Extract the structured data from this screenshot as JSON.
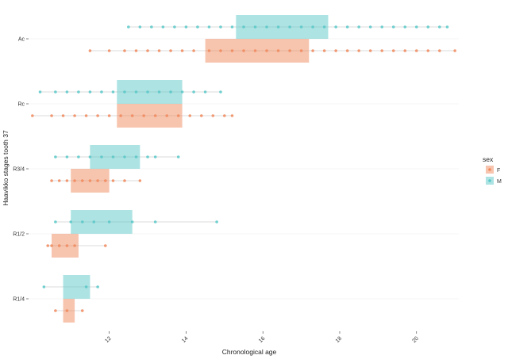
{
  "chart_data": {
    "type": "scatter",
    "title": "",
    "xlabel": "Chronological age",
    "ylabel": "Haavikko stages tooth 37",
    "xlim": [
      9.9,
      21.1
    ],
    "x_ticks": [
      12,
      14,
      16,
      18,
      20
    ],
    "categories": [
      "Ac",
      "Rc",
      "R3/4",
      "R1/2",
      "R1/4"
    ],
    "colors": {
      "F": "#F08A5D",
      "M": "#5BC8C8"
    },
    "legend": {
      "title": "sex",
      "entries": [
        "F",
        "M"
      ],
      "position": "right"
    },
    "series": [
      {
        "name": "F",
        "boxes": [
          {
            "stage": "Ac",
            "q1": 14.5,
            "q3": 17.2,
            "min": 11.5,
            "max": 21.0
          },
          {
            "stage": "Rc",
            "q1": 12.2,
            "q3": 13.9,
            "min": 10.0,
            "max": 15.2
          },
          {
            "stage": "R3/4",
            "q1": 11.0,
            "q3": 12.0,
            "min": 10.5,
            "max": 12.8
          },
          {
            "stage": "R1/2",
            "q1": 10.5,
            "q3": 11.2,
            "min": 10.4,
            "max": 11.9
          },
          {
            "stage": "R1/4",
            "q1": 10.8,
            "q3": 11.1,
            "min": 10.6,
            "max": 11.3
          }
        ],
        "points": [
          {
            "stage": "Ac",
            "x": [
              11.5,
              12.0,
              12.4,
              12.7,
              13.0,
              13.3,
              13.6,
              13.9,
              14.2,
              14.6,
              14.9,
              15.2,
              15.5,
              15.8,
              16.1,
              16.4,
              16.7,
              17.0,
              17.3,
              17.6,
              17.9,
              18.2,
              18.5,
              18.8,
              19.1,
              19.4,
              19.7,
              20.0,
              20.3,
              20.6,
              21.0
            ]
          },
          {
            "stage": "Rc",
            "x": [
              10.0,
              10.5,
              10.8,
              11.1,
              11.4,
              11.7,
              12.0,
              12.3,
              12.6,
              12.9,
              13.2,
              13.5,
              13.8,
              14.1,
              14.4,
              14.7,
              15.0,
              15.2
            ]
          },
          {
            "stage": "R3/4",
            "x": [
              10.5,
              10.7,
              10.9,
              11.1,
              11.3,
              11.5,
              11.7,
              11.9,
              12.1,
              12.4,
              12.8
            ]
          },
          {
            "stage": "R1/2",
            "x": [
              10.4,
              10.5,
              10.7,
              10.9,
              11.1,
              11.9
            ]
          },
          {
            "stage": "R1/4",
            "x": [
              10.6,
              10.9,
              11.3
            ]
          }
        ]
      },
      {
        "name": "M",
        "boxes": [
          {
            "stage": "Ac",
            "q1": 15.3,
            "q3": 17.7,
            "min": 12.5,
            "max": 20.8
          },
          {
            "stage": "Rc",
            "q1": 12.2,
            "q3": 13.9,
            "min": 10.2,
            "max": 14.9
          },
          {
            "stage": "R3/4",
            "q1": 11.5,
            "q3": 12.8,
            "min": 10.6,
            "max": 13.8
          },
          {
            "stage": "R1/2",
            "q1": 11.0,
            "q3": 12.6,
            "min": 10.6,
            "max": 14.8
          },
          {
            "stage": "R1/4",
            "q1": 10.8,
            "q3": 11.5,
            "min": 10.3,
            "max": 11.7
          }
        ],
        "points": [
          {
            "stage": "Ac",
            "x": [
              12.5,
              12.8,
              13.1,
              13.4,
              13.7,
              14.0,
              14.3,
              14.6,
              14.9,
              15.2,
              15.5,
              15.8,
              16.1,
              16.4,
              16.7,
              17.0,
              17.3,
              17.6,
              17.9,
              18.2,
              18.5,
              18.8,
              19.1,
              19.4,
              19.7,
              20.0,
              20.3,
              20.6,
              20.8
            ]
          },
          {
            "stage": "Rc",
            "x": [
              10.2,
              10.6,
              10.9,
              11.2,
              11.5,
              11.8,
              12.1,
              12.4,
              12.7,
              13.0,
              13.3,
              13.6,
              13.9,
              14.2,
              14.5,
              14.9
            ]
          },
          {
            "stage": "R3/4",
            "x": [
              10.6,
              10.9,
              11.2,
              11.5,
              11.8,
              12.1,
              12.4,
              12.7,
              13.0,
              13.2,
              13.8
            ]
          },
          {
            "stage": "R1/2",
            "x": [
              10.6,
              11.0,
              11.3,
              11.6,
              12.0,
              12.6,
              13.2,
              14.8
            ]
          },
          {
            "stage": "R1/4",
            "x": [
              10.3,
              11.4,
              11.7
            ]
          }
        ]
      }
    ]
  }
}
